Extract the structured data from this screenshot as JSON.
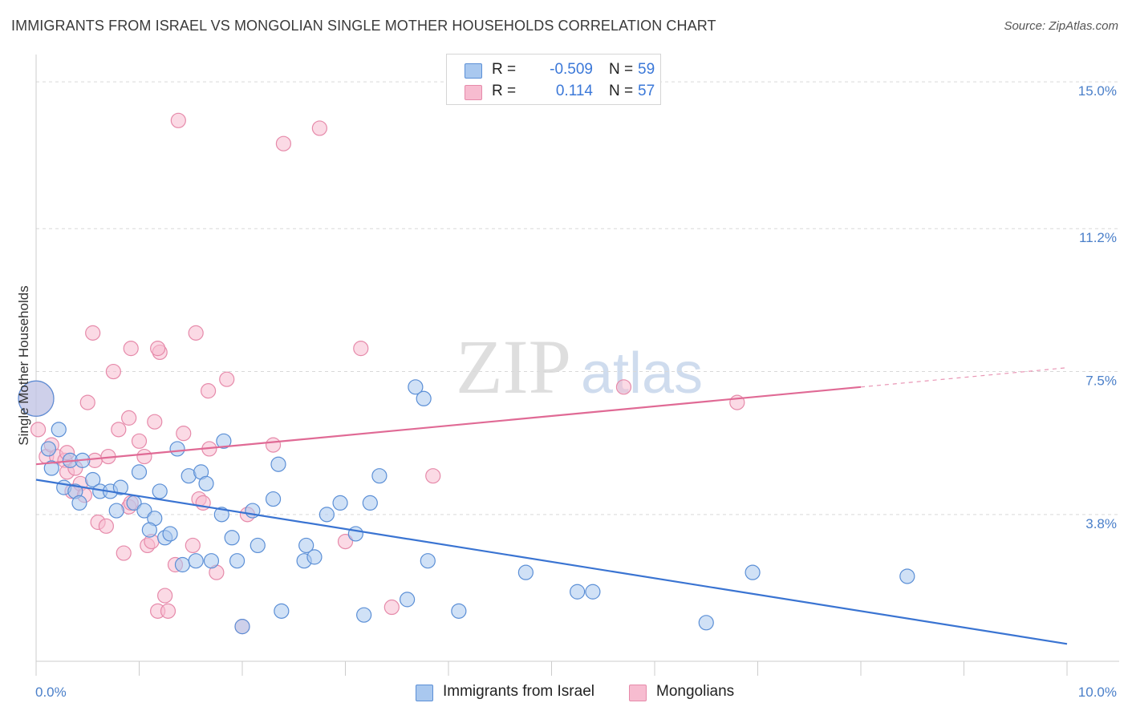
{
  "header": {
    "title": "IMMIGRANTS FROM ISRAEL VS MONGOLIAN SINGLE MOTHER HOUSEHOLDS CORRELATION CHART",
    "source": "Source: ZipAtlas.com"
  },
  "legend": {
    "rows": [
      {
        "r_label": "R =",
        "r_value": "-0.509",
        "n_label": "N =",
        "n_value": "59"
      },
      {
        "r_label": "R =",
        "r_value": "0.114",
        "n_label": "N =",
        "n_value": "57"
      }
    ]
  },
  "bottom_legend": {
    "series_a": "Immigrants from Israel",
    "series_b": "Mongolians"
  },
  "watermark": {
    "zip": "ZIP",
    "atlas": "atlas"
  },
  "colors": {
    "blue_fill": "#a9c8ef",
    "blue_stroke": "#5b8fd6",
    "blue_line": "#3a74d2",
    "pink_fill": "#f7bcd0",
    "pink_stroke": "#e68aaa",
    "pink_line": "#e06a95",
    "tick_text": "#4a7fc9",
    "grid": "#d9d9d9"
  },
  "chart_data": {
    "type": "scatter",
    "title": "IMMIGRANTS FROM ISRAEL VS MONGOLIAN SINGLE MOTHER HOUSEHOLDS CORRELATION CHART",
    "xlabel": "",
    "ylabel": "Single Mother Households",
    "xlim": [
      0,
      10
    ],
    "ylim": [
      0,
      15.5
    ],
    "x_tick_labels": [
      "0.0%",
      "10.0%"
    ],
    "y_ticks": [
      3.8,
      7.5,
      11.2,
      15.0
    ],
    "y_tick_labels": [
      "3.8%",
      "7.5%",
      "11.2%",
      "15.0%"
    ],
    "grid": true,
    "legend_position": "top-center",
    "series": [
      {
        "name": "Immigrants from Israel",
        "color": "#a9c8ef",
        "r": -0.509,
        "n": 59,
        "trend": {
          "x": [
            0,
            10
          ],
          "y": [
            4.7,
            0.45
          ]
        },
        "points": [
          {
            "x": 0.0,
            "y": 6.8,
            "big": true
          },
          {
            "x": 0.12,
            "y": 5.5
          },
          {
            "x": 0.22,
            "y": 6.0
          },
          {
            "x": 0.15,
            "y": 5.0
          },
          {
            "x": 0.33,
            "y": 5.2
          },
          {
            "x": 0.27,
            "y": 4.5
          },
          {
            "x": 0.38,
            "y": 4.4
          },
          {
            "x": 0.42,
            "y": 4.1
          },
          {
            "x": 0.55,
            "y": 4.7
          },
          {
            "x": 0.62,
            "y": 4.4
          },
          {
            "x": 0.72,
            "y": 4.4
          },
          {
            "x": 0.82,
            "y": 4.5
          },
          {
            "x": 0.78,
            "y": 3.9
          },
          {
            "x": 0.95,
            "y": 4.1
          },
          {
            "x": 1.0,
            "y": 4.9
          },
          {
            "x": 1.05,
            "y": 3.9
          },
          {
            "x": 1.15,
            "y": 3.7
          },
          {
            "x": 1.2,
            "y": 4.4
          },
          {
            "x": 1.1,
            "y": 3.4
          },
          {
            "x": 1.25,
            "y": 3.2
          },
          {
            "x": 1.3,
            "y": 3.3
          },
          {
            "x": 1.37,
            "y": 5.5
          },
          {
            "x": 1.42,
            "y": 2.5
          },
          {
            "x": 1.48,
            "y": 4.8
          },
          {
            "x": 1.55,
            "y": 2.6
          },
          {
            "x": 1.6,
            "y": 4.9
          },
          {
            "x": 1.65,
            "y": 4.6
          },
          {
            "x": 1.7,
            "y": 2.6
          },
          {
            "x": 1.8,
            "y": 3.8
          },
          {
            "x": 1.82,
            "y": 5.7
          },
          {
            "x": 1.9,
            "y": 3.2
          },
          {
            "x": 1.95,
            "y": 2.6
          },
          {
            "x": 2.0,
            "y": 0.9
          },
          {
            "x": 2.1,
            "y": 3.9
          },
          {
            "x": 2.15,
            "y": 3.0
          },
          {
            "x": 2.3,
            "y": 4.2
          },
          {
            "x": 2.35,
            "y": 5.1
          },
          {
            "x": 2.38,
            "y": 1.3
          },
          {
            "x": 2.6,
            "y": 2.6
          },
          {
            "x": 2.62,
            "y": 3.0
          },
          {
            "x": 2.7,
            "y": 2.7
          },
          {
            "x": 2.82,
            "y": 3.8
          },
          {
            "x": 2.95,
            "y": 4.1
          },
          {
            "x": 3.1,
            "y": 3.3
          },
          {
            "x": 3.18,
            "y": 1.2
          },
          {
            "x": 3.24,
            "y": 4.1
          },
          {
            "x": 3.33,
            "y": 4.8
          },
          {
            "x": 3.6,
            "y": 1.6
          },
          {
            "x": 3.68,
            "y": 7.1
          },
          {
            "x": 3.76,
            "y": 6.8
          },
          {
            "x": 3.8,
            "y": 2.6
          },
          {
            "x": 4.1,
            "y": 1.3
          },
          {
            "x": 4.75,
            "y": 2.3
          },
          {
            "x": 5.25,
            "y": 1.8
          },
          {
            "x": 5.4,
            "y": 1.8
          },
          {
            "x": 6.5,
            "y": 1.0
          },
          {
            "x": 6.95,
            "y": 2.3
          },
          {
            "x": 8.45,
            "y": 2.2
          },
          {
            "x": 0.45,
            "y": 5.2
          }
        ]
      },
      {
        "name": "Mongolians",
        "color": "#f7bcd0",
        "r": 0.114,
        "n": 57,
        "trend": {
          "x": [
            0,
            8.0
          ],
          "y": [
            5.1,
            7.1
          ]
        },
        "trend_dashed": {
          "x": [
            8.0,
            10.0
          ],
          "y": [
            7.1,
            7.6
          ]
        },
        "points": [
          {
            "x": 0.0,
            "y": 6.8,
            "big": true
          },
          {
            "x": 0.02,
            "y": 6.0
          },
          {
            "x": 0.1,
            "y": 5.3
          },
          {
            "x": 0.15,
            "y": 5.6
          },
          {
            "x": 0.2,
            "y": 5.3
          },
          {
            "x": 0.28,
            "y": 5.2
          },
          {
            "x": 0.3,
            "y": 4.9
          },
          {
            "x": 0.35,
            "y": 4.4
          },
          {
            "x": 0.38,
            "y": 5.0
          },
          {
            "x": 0.43,
            "y": 4.6
          },
          {
            "x": 0.47,
            "y": 4.3
          },
          {
            "x": 0.5,
            "y": 6.7
          },
          {
            "x": 0.57,
            "y": 5.2
          },
          {
            "x": 0.6,
            "y": 3.6
          },
          {
            "x": 0.68,
            "y": 3.5
          },
          {
            "x": 0.7,
            "y": 5.3
          },
          {
            "x": 0.8,
            "y": 6.0
          },
          {
            "x": 0.85,
            "y": 2.8
          },
          {
            "x": 0.9,
            "y": 4.0
          },
          {
            "x": 0.92,
            "y": 4.1
          },
          {
            "x": 1.0,
            "y": 5.7
          },
          {
            "x": 1.05,
            "y": 5.3
          },
          {
            "x": 1.08,
            "y": 3.0
          },
          {
            "x": 1.15,
            "y": 6.2
          },
          {
            "x": 1.12,
            "y": 3.1
          },
          {
            "x": 1.2,
            "y": 8.0
          },
          {
            "x": 1.18,
            "y": 1.3
          },
          {
            "x": 1.25,
            "y": 1.7
          },
          {
            "x": 1.28,
            "y": 1.3
          },
          {
            "x": 1.35,
            "y": 2.5
          },
          {
            "x": 1.43,
            "y": 5.9
          },
          {
            "x": 1.52,
            "y": 3.0
          },
          {
            "x": 1.58,
            "y": 4.2
          },
          {
            "x": 1.62,
            "y": 4.1
          },
          {
            "x": 1.75,
            "y": 2.3
          },
          {
            "x": 1.85,
            "y": 7.3
          },
          {
            "x": 2.0,
            "y": 0.9
          },
          {
            "x": 2.05,
            "y": 3.8
          },
          {
            "x": 2.3,
            "y": 5.6
          },
          {
            "x": 2.4,
            "y": 13.4
          },
          {
            "x": 2.75,
            "y": 13.8
          },
          {
            "x": 3.0,
            "y": 3.1
          },
          {
            "x": 3.15,
            "y": 8.1
          },
          {
            "x": 3.45,
            "y": 1.4
          },
          {
            "x": 3.85,
            "y": 4.8
          },
          {
            "x": 5.7,
            "y": 7.1
          },
          {
            "x": 6.8,
            "y": 6.7
          },
          {
            "x": 0.55,
            "y": 8.5
          },
          {
            "x": 0.75,
            "y": 7.5
          },
          {
            "x": 0.92,
            "y": 8.1
          },
          {
            "x": 1.18,
            "y": 8.1
          },
          {
            "x": 1.38,
            "y": 14.0
          },
          {
            "x": 1.55,
            "y": 8.5
          },
          {
            "x": 1.67,
            "y": 7.0
          },
          {
            "x": 0.9,
            "y": 6.3
          },
          {
            "x": 0.3,
            "y": 5.4
          },
          {
            "x": 1.68,
            "y": 5.5
          }
        ]
      }
    ]
  }
}
